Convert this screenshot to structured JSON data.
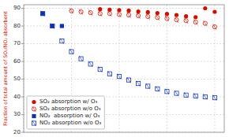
{
  "chart_data": {
    "type": "scatter",
    "y_label": "Fraction of total amount of SO₂/NO₂ absorbent",
    "xlim": [
      0,
      21
    ],
    "xticks": [
      0,
      5,
      10,
      15,
      20
    ],
    "ylim": [
      20,
      92
    ],
    "yticks": [
      20,
      30,
      40,
      50,
      60,
      70,
      80,
      90
    ],
    "grid": true,
    "tick_labels": "y",
    "legend": "lower left",
    "series": [
      {
        "name": "SO₂ absorption w/ O₃",
        "color": "#cc1100",
        "marker": "circle",
        "x": [
          8,
          9,
          10,
          11,
          12,
          13,
          14,
          15,
          16,
          17,
          18,
          19,
          20
        ],
        "values": [
          89.5,
          89.2,
          89.0,
          88.7,
          88.2,
          87.8,
          87.3,
          86.8,
          86.2,
          85.5,
          85.0,
          90.0,
          88.0
        ]
      },
      {
        "name": "SO₂ absorption w/o O₃",
        "color": "#cc1100",
        "marker": "circle-open",
        "x": [
          5,
          6,
          7,
          8,
          9,
          10,
          11,
          12,
          13,
          14,
          15,
          16,
          17,
          18,
          19,
          20
        ],
        "values": [
          88.5,
          88.0,
          87.5,
          87.0,
          87.0,
          86.5,
          86.2,
          85.8,
          85.3,
          84.8,
          84.2,
          83.5,
          83.0,
          82.2,
          81.5,
          79.5
        ]
      },
      {
        "name": "NO₂  absorption w/ O₃",
        "color": "#1133aa",
        "marker": "square",
        "x": [
          2,
          3,
          4
        ],
        "values": [
          87.0,
          80.0,
          80.0
        ]
      },
      {
        "name": "NO₂ absorption w/o O₃",
        "color": "#1133aa",
        "marker": "square-open",
        "x": [
          2,
          3,
          4,
          5,
          6,
          7,
          8,
          9,
          10,
          11,
          12,
          13,
          14,
          15,
          16,
          17,
          18,
          19,
          20
        ],
        "values": [
          87.0,
          80.0,
          71.5,
          65.5,
          61.5,
          58.5,
          55.5,
          53.0,
          51.5,
          49.5,
          47.5,
          46.0,
          44.5,
          43.0,
          42.0,
          41.0,
          40.5,
          40.0,
          39.5
        ]
      }
    ]
  }
}
